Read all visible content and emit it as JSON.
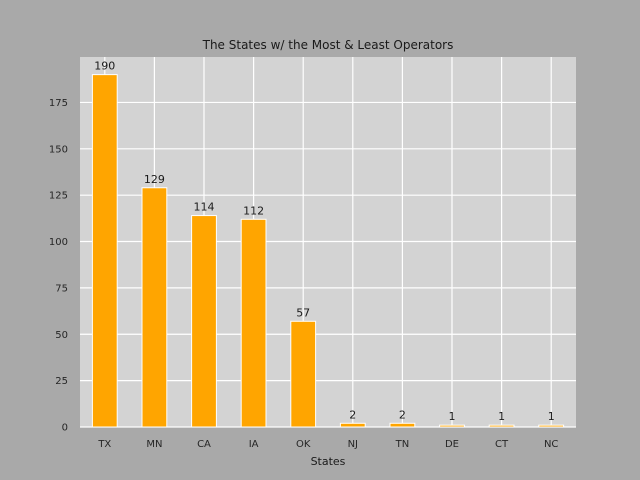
{
  "chart_data": {
    "type": "bar",
    "title": "The States w/ the Most & Least Operators",
    "xlabel": "States",
    "ylabel": "",
    "categories": [
      "TX",
      "MN",
      "CA",
      "IA",
      "OK",
      "NJ",
      "TN",
      "DE",
      "CT",
      "NC"
    ],
    "values": [
      190,
      129,
      114,
      112,
      57,
      2,
      2,
      1,
      1,
      1
    ],
    "data_labels": [
      "190",
      "129",
      "114",
      "112",
      "57",
      "2",
      "2",
      "1",
      "1",
      "1"
    ],
    "ylim": [
      0,
      199.5
    ],
    "yticks": [
      0,
      25,
      50,
      75,
      100,
      125,
      150,
      175
    ],
    "grid": true,
    "colors": {
      "figure_background": "#a9a9a9",
      "plot_background": "#d3d3d3",
      "bar": "#ffa500",
      "bar_edge": "#ffffff",
      "grid": "#ffffff"
    }
  }
}
